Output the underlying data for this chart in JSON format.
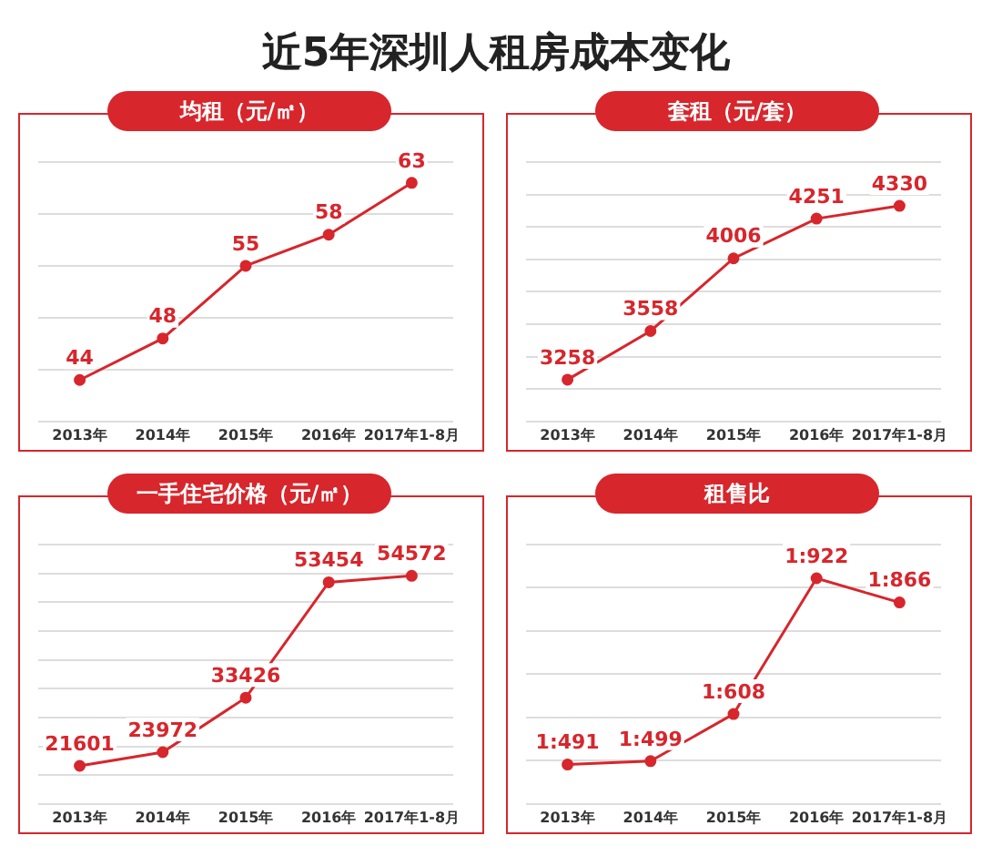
{
  "chart_data": [
    {
      "type": "line",
      "title": "均租（元/㎡）",
      "annotations": [
        "近5年深圳人租房成本变化"
      ],
      "categories": [
        "2013年",
        "2014年",
        "2015年",
        "2016年",
        "2017年1-8月"
      ],
      "values": [
        44,
        48,
        55,
        58,
        63
      ],
      "color": "#d7262c",
      "data_labels": true,
      "grid": "y",
      "tick_labels": "x",
      "marker": "circle"
    },
    {
      "type": "line",
      "title": "套租（元/套）",
      "categories": [
        "2013年",
        "2014年",
        "2015年",
        "2016年",
        "2017年1-8月"
      ],
      "values": [
        3258,
        3558,
        4006,
        4251,
        4330
      ],
      "color": "#d7262c",
      "data_labels": true,
      "grid": "y",
      "tick_labels": "x",
      "marker": "circle"
    },
    {
      "type": "line",
      "title": "一手住宅价格（元/㎡）",
      "categories": [
        "2013年",
        "2014年",
        "2015年",
        "2016年",
        "2017年1-8月"
      ],
      "values": [
        21601,
        23972,
        33426,
        53454,
        54572
      ],
      "color": "#d7262c",
      "data_labels": true,
      "grid": "y",
      "tick_labels": "x",
      "marker": "circle"
    },
    {
      "type": "line",
      "title": "租售比",
      "categories": [
        "2013年",
        "2014年",
        "2015年",
        "2016年",
        "2017年1-8月"
      ],
      "values": [
        491,
        499,
        608,
        922,
        866
      ],
      "value_labels": [
        "1:491",
        "1:499",
        "1:608",
        "1:922",
        "1:866"
      ],
      "color": "#d7262c",
      "grid": "y",
      "tick_labels": "x",
      "marker": "circle"
    }
  ]
}
